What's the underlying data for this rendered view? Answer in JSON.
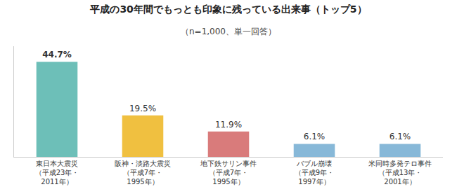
{
  "chart_data": {
    "type": "bar",
    "title": "平成の30年間でもっとも印象に残っている出来事（トップ5）",
    "subtitle": "（n=1,000、単一回答）",
    "categories": [
      "東日本大震災\n（平成23年・\n2011年）",
      "阪神・淡路大震災\n（平成7年・\n1995年）",
      "地下鉄サリン事件\n（平成7年・\n1995年）",
      "バブル崩壊\n（平成9年・\n1997年）",
      "米同時多発テロ事件\n（平成13年・\n2001年）"
    ],
    "values": [
      44.7,
      19.5,
      11.9,
      6.1,
      6.1
    ],
    "value_labels": [
      "44.7%",
      "19.5%",
      "11.9%",
      "6.1%",
      "6.1%"
    ],
    "colors": [
      "#6dbfb8",
      "#f0c040",
      "#d97b7b",
      "#87b8d8",
      "#87b8d8"
    ],
    "ylim": [
      0,
      52
    ],
    "grid": false,
    "data_labels": true,
    "tick_labels": "x"
  }
}
